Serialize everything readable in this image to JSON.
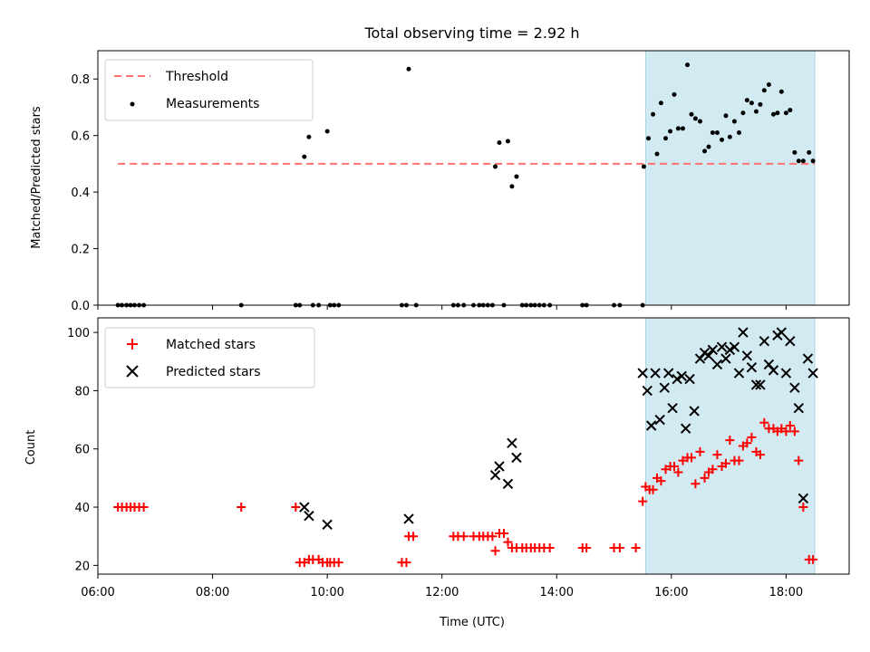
{
  "title": "Total observing time = 2.92 h",
  "chart_data": [
    {
      "type": "scatter",
      "ylabel": "Matched/Predicted stars",
      "xlim": [
        6.0,
        19.1
      ],
      "ylim": [
        0.0,
        0.9
      ],
      "yticks": [
        0.0,
        0.2,
        0.4,
        0.6,
        0.8
      ],
      "grid": false,
      "legend": "top-left",
      "shaded_span": [
        15.55,
        18.5
      ],
      "threshold": {
        "name": "Threshold",
        "y": 0.5,
        "x": [
          6.35,
          18.5
        ],
        "color": "#ff7070"
      },
      "series": [
        {
          "name": "Measurements",
          "color": "#000000",
          "x": [
            6.35,
            6.42,
            6.5,
            6.57,
            6.64,
            6.72,
            6.8,
            8.5,
            9.45,
            9.52,
            9.6,
            9.68,
            9.75,
            9.85,
            10.0,
            10.05,
            10.12,
            10.2,
            11.3,
            11.38,
            11.42,
            11.55,
            12.2,
            12.28,
            12.38,
            12.55,
            12.65,
            12.72,
            12.8,
            12.88,
            12.93,
            13.0,
            13.08,
            13.15,
            13.22,
            13.3,
            13.4,
            13.47,
            13.55,
            13.62,
            13.7,
            13.78,
            13.88,
            14.45,
            14.52,
            15.0,
            15.1,
            15.5,
            15.52,
            15.6,
            15.68,
            15.75,
            15.82,
            15.9,
            15.98,
            16.05,
            16.12,
            16.2,
            16.28,
            16.35,
            16.42,
            16.5,
            16.58,
            16.65,
            16.72,
            16.8,
            16.88,
            16.95,
            17.02,
            17.1,
            17.18,
            17.25,
            17.32,
            17.4,
            17.48,
            17.55,
            17.62,
            17.7,
            17.78,
            17.85,
            17.92,
            18.0,
            18.07,
            18.15,
            18.22,
            18.3,
            18.4,
            18.47
          ],
          "y": [
            0,
            0,
            0,
            0,
            0,
            0,
            0,
            0,
            0,
            0,
            0.525,
            0.595,
            0,
            0,
            0.615,
            0,
            0,
            0,
            0,
            0,
            0.835,
            0,
            0,
            0,
            0,
            0,
            0,
            0,
            0,
            0,
            0.49,
            0.575,
            0,
            0.58,
            0.42,
            0.455,
            0,
            0,
            0,
            0,
            0,
            0,
            0,
            0,
            0,
            0,
            0,
            0,
            0.49,
            0.59,
            0.675,
            0.535,
            0.715,
            0.59,
            0.615,
            0.745,
            0.625,
            0.625,
            0.85,
            0.675,
            0.66,
            0.65,
            0.545,
            0.56,
            0.61,
            0.61,
            0.585,
            0.67,
            0.595,
            0.65,
            0.61,
            0.68,
            0.725,
            0.715,
            0.685,
            0.71,
            0.76,
            0.78,
            0.675,
            0.68,
            0.755,
            0.68,
            0.69,
            0.54,
            0.51,
            0.51,
            0.54,
            0.51
          ]
        }
      ]
    },
    {
      "type": "scatter",
      "xlabel": "Time (UTC)",
      "ylabel": "Count",
      "xlim": [
        6.0,
        19.1
      ],
      "ylim": [
        17,
        105
      ],
      "yticks": [
        20,
        40,
        60,
        80,
        100
      ],
      "xticks": [
        "06:00",
        "08:00",
        "10:00",
        "12:00",
        "14:00",
        "16:00",
        "18:00"
      ],
      "xtick_values": [
        6,
        8,
        10,
        12,
        14,
        16,
        18
      ],
      "grid": false,
      "legend": "top-left",
      "shaded_span": [
        15.55,
        18.5
      ],
      "series": [
        {
          "name": "Matched stars",
          "marker": "plus",
          "color": "#ff0000",
          "x": [
            6.35,
            6.42,
            6.5,
            6.57,
            6.64,
            6.72,
            6.8,
            8.5,
            9.45,
            9.52,
            9.6,
            9.68,
            9.75,
            9.85,
            9.92,
            10.0,
            10.05,
            10.12,
            10.2,
            11.3,
            11.38,
            11.42,
            11.5,
            12.2,
            12.28,
            12.38,
            12.55,
            12.65,
            12.72,
            12.8,
            12.88,
            12.93,
            13.0,
            13.08,
            13.15,
            13.22,
            13.3,
            13.4,
            13.47,
            13.55,
            13.62,
            13.7,
            13.78,
            13.88,
            14.45,
            14.52,
            15.0,
            15.1,
            15.38,
            15.5,
            15.55,
            15.62,
            15.68,
            15.75,
            15.82,
            15.9,
            15.98,
            16.05,
            16.12,
            16.2,
            16.28,
            16.35,
            16.42,
            16.5,
            16.58,
            16.65,
            16.72,
            16.8,
            16.88,
            16.95,
            17.02,
            17.1,
            17.18,
            17.25,
            17.32,
            17.4,
            17.48,
            17.55,
            17.62,
            17.7,
            17.78,
            17.85,
            17.92,
            18.0,
            18.07,
            18.15,
            18.22,
            18.3,
            18.4,
            18.47
          ],
          "y": [
            40,
            40,
            40,
            40,
            40,
            40,
            40,
            40,
            40,
            21,
            21,
            22,
            22,
            22,
            21,
            21,
            21,
            21,
            21,
            21,
            21,
            30,
            30,
            30,
            30,
            30,
            30,
            30,
            30,
            30,
            30,
            25,
            31,
            31,
            28,
            26,
            26,
            26,
            26,
            26,
            26,
            26,
            26,
            26,
            26,
            26,
            26,
            26,
            26,
            42,
            47,
            46,
            46,
            50,
            49,
            53,
            54,
            54,
            52,
            56,
            57,
            57,
            48,
            59,
            50,
            52,
            53,
            58,
            54,
            55,
            63,
            56,
            56,
            61,
            62,
            64,
            59,
            58,
            69,
            67,
            67,
            66,
            67,
            66,
            68,
            66,
            56,
            40,
            22,
            22
          ]
        },
        {
          "name": "Predicted stars",
          "marker": "x",
          "color": "#000000",
          "x": [
            9.6,
            9.68,
            10.0,
            11.42,
            12.93,
            13.0,
            13.15,
            13.22,
            13.3,
            15.5,
            15.58,
            15.65,
            15.72,
            15.8,
            15.88,
            15.95,
            16.02,
            16.1,
            16.18,
            16.25,
            16.32,
            16.4,
            16.5,
            16.58,
            16.65,
            16.72,
            16.8,
            16.88,
            16.95,
            17.02,
            17.1,
            17.18,
            17.25,
            17.32,
            17.4,
            17.48,
            17.55,
            17.62,
            17.7,
            17.78,
            17.85,
            17.92,
            18.0,
            18.07,
            18.15,
            18.22,
            18.3,
            18.38,
            18.47
          ],
          "y": [
            40,
            37,
            34,
            36,
            51,
            54,
            48,
            62,
            57,
            86,
            80,
            68,
            86,
            70,
            81,
            86,
            74,
            84,
            85,
            67,
            84,
            73,
            91,
            93,
            92,
            94,
            89,
            95,
            91,
            94,
            95,
            86,
            100,
            92,
            88,
            82,
            82,
            97,
            89,
            87,
            99,
            100,
            86,
            97,
            81,
            74,
            43,
            91,
            86
          ]
        }
      ]
    }
  ]
}
